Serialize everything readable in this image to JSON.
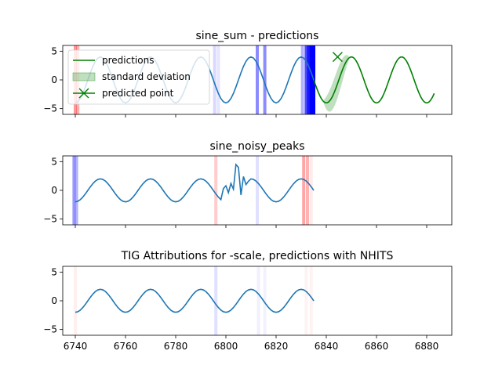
{
  "chart_data": [
    {
      "type": "line",
      "title": "sine_sum - predictions",
      "ylim": [
        -6,
        6
      ],
      "xlim": [
        6735,
        6890
      ],
      "yticks": [
        -5,
        0,
        5
      ],
      "signal": {
        "x_start": 6740,
        "x_end": 6835,
        "amplitude": 4,
        "period": 20,
        "phase_x": 6745,
        "color": "#1f77b4"
      },
      "prediction": {
        "x_start": 6835,
        "x_end": 6883,
        "amplitude": 4,
        "period": 20,
        "phase_x": 6845,
        "color": "#008000"
      },
      "std_band": {
        "x_start": 6839,
        "x_end": 6849,
        "center": 6844,
        "half_width": 2.2,
        "color": "#008000"
      },
      "predicted_point": {
        "x": 6844.5,
        "y": 4.0,
        "color": "#008000"
      },
      "attribution_bands": [
        {
          "x": 6740,
          "color": "#ff0000",
          "alpha": 0.4
        },
        {
          "x": 6741,
          "color": "#ff0000",
          "alpha": 0.3
        },
        {
          "x": 6795.5,
          "color": "#0000ff",
          "alpha": 0.15
        },
        {
          "x": 6797,
          "color": "#0000ff",
          "alpha": 0.1
        },
        {
          "x": 6812.5,
          "color": "#0000ff",
          "alpha": 0.45
        },
        {
          "x": 6815.5,
          "color": "#0000ff",
          "alpha": 0.45
        },
        {
          "x": 6830.5,
          "color": "#0000ff",
          "alpha": 0.3
        },
        {
          "x": 6832,
          "color": "#0000ff",
          "alpha": 0.7
        },
        {
          "x": 6833,
          "color": "#0000ff",
          "alpha": 0.9
        },
        {
          "x": 6834,
          "color": "#0000ff",
          "alpha": 1.0
        },
        {
          "x": 6835,
          "color": "#0000ff",
          "alpha": 1.0
        }
      ],
      "legend": {
        "location": "upper-left",
        "entries": [
          {
            "label": "predictions",
            "kind": "line",
            "color": "#008000"
          },
          {
            "label": "standard deviation",
            "kind": "patch",
            "color": "#008000"
          },
          {
            "label": "predicted point",
            "kind": "marker",
            "color": "#008000"
          }
        ]
      }
    },
    {
      "type": "line",
      "title": "sine_noisy_peaks",
      "ylim": [
        -6,
        6
      ],
      "xlim": [
        6735,
        6890
      ],
      "yticks": [
        -5,
        0,
        5
      ],
      "signal": {
        "x_start": 6740,
        "x_end": 6835,
        "amplitude": 2,
        "period": 20,
        "phase_x": 6745,
        "color": "#1f77b4"
      },
      "noise_points": [
        [
          6799,
          0.3
        ],
        [
          6800,
          0.8
        ],
        [
          6801,
          -0.4
        ],
        [
          6802,
          1.2
        ],
        [
          6803,
          0.2
        ],
        [
          6804,
          4.5
        ],
        [
          6805,
          4.0
        ],
        [
          6806,
          -0.8
        ],
        [
          6807,
          2.4
        ],
        [
          6808,
          1.0
        ],
        [
          6809,
          1.6
        ]
      ],
      "attribution_bands": [
        {
          "x": 6739.5,
          "color": "#0000ff",
          "alpha": 0.4
        },
        {
          "x": 6740.5,
          "color": "#0000ff",
          "alpha": 0.3
        },
        {
          "x": 6796,
          "color": "#ff0000",
          "alpha": 0.2
        },
        {
          "x": 6812.5,
          "color": "#0000ff",
          "alpha": 0.12
        },
        {
          "x": 6831,
          "color": "#ff0000",
          "alpha": 0.35
        },
        {
          "x": 6832.5,
          "color": "#ff0000",
          "alpha": 0.3
        },
        {
          "x": 6834,
          "color": "#ff0000",
          "alpha": 0.08
        }
      ]
    },
    {
      "type": "line",
      "title": "TIG Attributions for -scale, predictions with NHITS",
      "ylim": [
        -6,
        6
      ],
      "xlim": [
        6735,
        6890
      ],
      "yticks": [
        -5,
        0,
        5
      ],
      "xticks": [
        6740,
        6760,
        6780,
        6800,
        6820,
        6840,
        6860,
        6880
      ],
      "signal": {
        "x_start": 6740,
        "x_end": 6835,
        "amplitude": 2,
        "period": 20,
        "phase_x": 6745,
        "color": "#1f77b4"
      },
      "attribution_bands": [
        {
          "x": 6740,
          "color": "#ff0000",
          "alpha": 0.06
        },
        {
          "x": 6796,
          "color": "#0000ff",
          "alpha": 0.12
        },
        {
          "x": 6813,
          "color": "#0000ff",
          "alpha": 0.06
        },
        {
          "x": 6815.5,
          "color": "#0000ff",
          "alpha": 0.05
        },
        {
          "x": 6832,
          "color": "#ff0000",
          "alpha": 0.05
        },
        {
          "x": 6834,
          "color": "#ff0000",
          "alpha": 0.05
        }
      ]
    }
  ]
}
